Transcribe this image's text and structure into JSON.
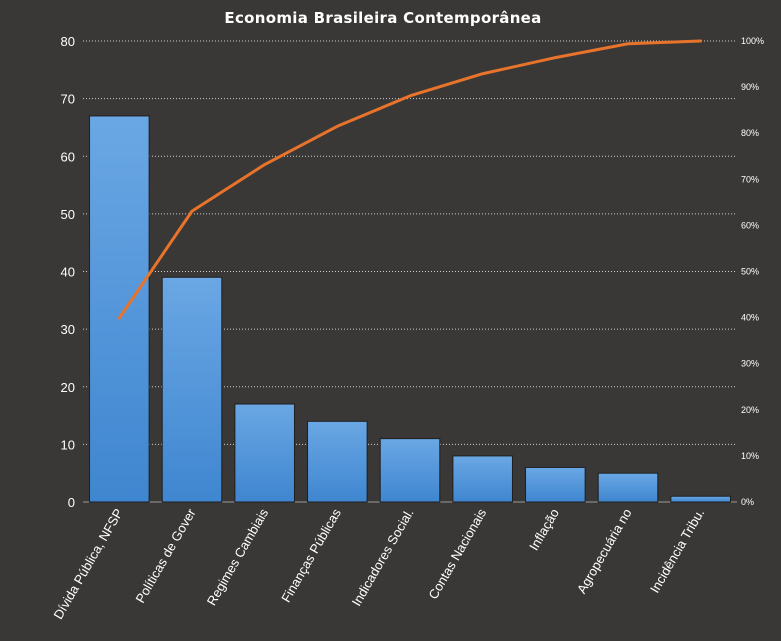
{
  "chart_data": {
    "type": "bar",
    "title": "Economia Brasileira  Contemporânea",
    "categories": [
      "Dívida Pública, NFSP",
      "Políticas de Gover",
      "Regimes Cambiais",
      "Finanças Públicas",
      "Indicadores Social.",
      "Contas Nacionais",
      "Inflação",
      "Agropecuária no",
      "Incidência Tribu."
    ],
    "series": [
      {
        "type": "bar",
        "values": [
          67,
          39,
          17,
          14,
          11,
          8,
          6,
          5,
          1
        ],
        "color": "#4a8fd6"
      },
      {
        "type": "line",
        "axis": "secondary",
        "values": [
          39.9,
          63.1,
          73.2,
          81.5,
          88.1,
          92.9,
          96.4,
          99.4,
          100
        ],
        "color": "#e8732a"
      }
    ],
    "ylim": [
      0,
      80
    ],
    "yticks": [
      0,
      10,
      20,
      30,
      40,
      50,
      60,
      70,
      80
    ],
    "y2lim": [
      0,
      100
    ],
    "y2ticks": [
      "0%",
      "10%",
      "20%",
      "30%",
      "40%",
      "50%",
      "60%",
      "70%",
      "80%",
      "90%",
      "100%"
    ],
    "grid": true,
    "background": "#3a3836"
  }
}
